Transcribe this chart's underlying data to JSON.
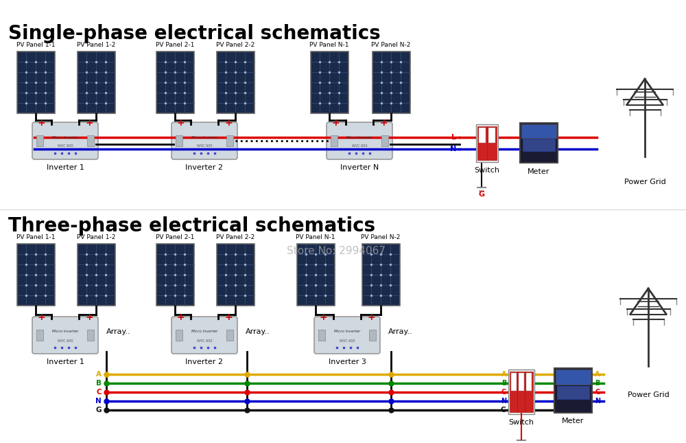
{
  "title_single": "Single-phase electrical schematics",
  "title_three": "Three-phase electrical schematics",
  "title_fontsize": 20,
  "bg_color": "#ffffff",
  "panel_labels_single": [
    "PV Panel 1-1",
    "PV Panel 1-2",
    "PV Panel 2-1",
    "PV Panel 2-2",
    "PV Panel N-1",
    "PV Panel N-2"
  ],
  "panel_labels_three": [
    "PV Panel 1-1",
    "PV Panel 1-2",
    "PV Panel 2-1",
    "PV Panel 2-2",
    "PV Panel N-1",
    "PV Panel N-2"
  ],
  "inverter_labels_single": [
    "Inverter 1",
    "Inverter 2",
    "Inverter N"
  ],
  "inverter_labels_three": [
    "Inverter 1",
    "Inverter 2",
    "Inverter 3"
  ],
  "panel_color_dark": "#1a2a4a",
  "panel_color_cell": "#2a3a5a",
  "panel_border": "#666666",
  "inverter_color": "#d0d8e0",
  "inverter_border": "#888888",
  "wire_black": "#111111",
  "wire_red": "#dd0000",
  "wire_blue": "#0000cc",
  "wire_yellow": "#ddaa00",
  "wire_green": "#008800",
  "switch_color": "#cc2222",
  "switch_border": "#888888",
  "meter_color": "#222244",
  "label_switch_single": "Switch",
  "label_meter_single": "Meter",
  "label_grid_single": "Power Grid",
  "label_switch_three": "Switch",
  "label_meter_three": "Meter",
  "label_grid_three": "Power Grid",
  "store_text": "Store No: 2994067",
  "store_color": "#aaaaaa",
  "array_labels_three": [
    "Array..",
    "Array..",
    "Array.."
  ],
  "phase_labels_left": [
    "A",
    "B",
    "C",
    "N",
    "G"
  ],
  "phase_colors": [
    "#ddaa00",
    "#008800",
    "#dd0000",
    "#0000cc",
    "#111111"
  ]
}
